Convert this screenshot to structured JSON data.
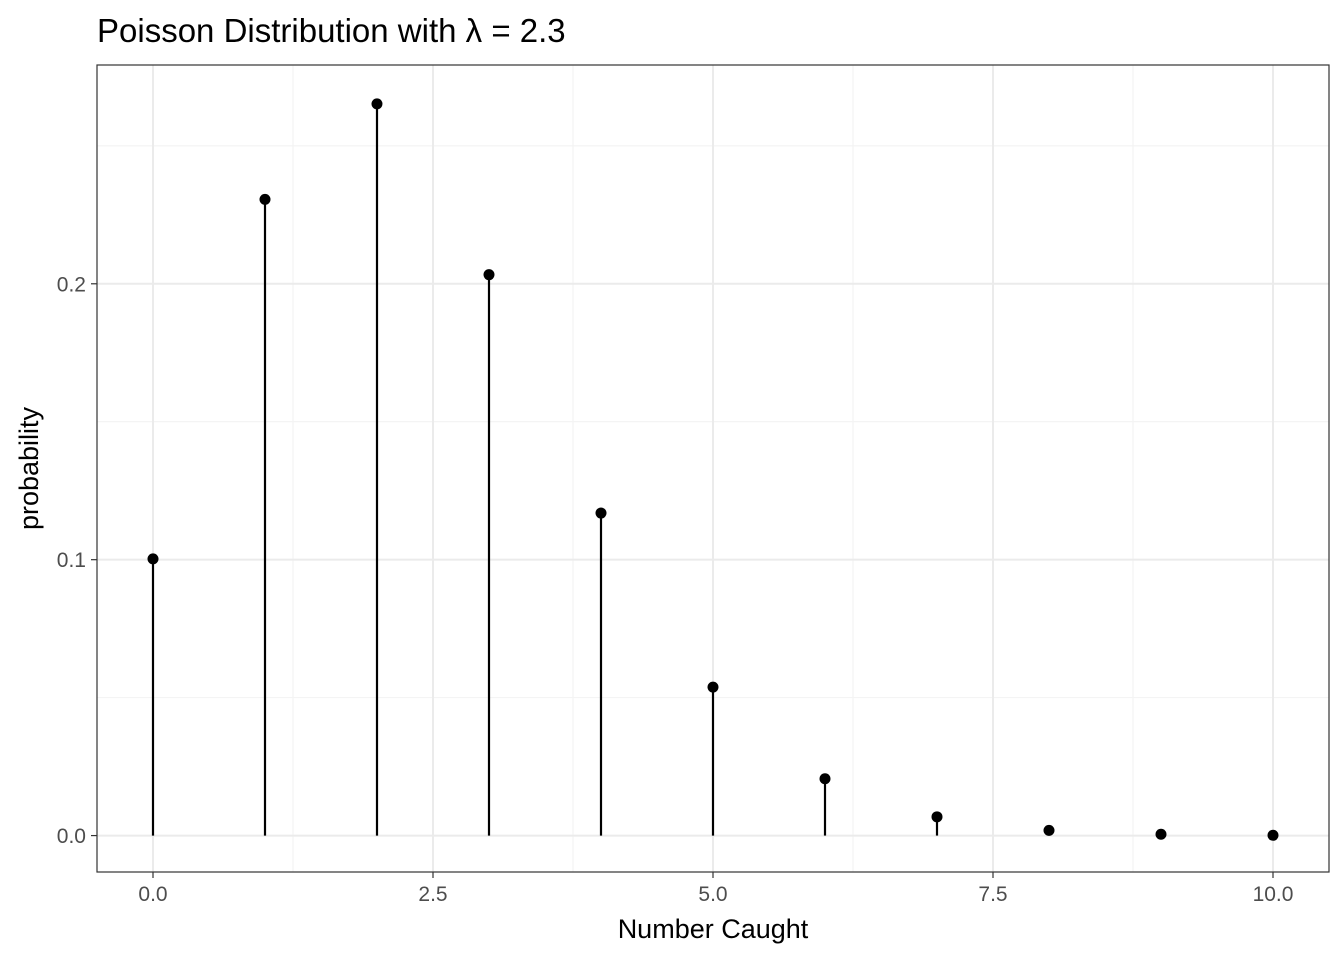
{
  "chart_data": {
    "type": "lollipop",
    "title": "Poisson Distribution with  λ = 2.3",
    "xlabel": "Number Caught",
    "ylabel": "probability",
    "xlim": [
      -0.5,
      10.5
    ],
    "ylim": [
      -0.0132,
      0.2793
    ],
    "x_ticks": [
      0,
      2.5,
      5,
      7.5,
      10
    ],
    "x_tick_labels": [
      "0.0",
      "2.5",
      "5.0",
      "7.5",
      "10.0"
    ],
    "x_minor_ticks": [
      1.25,
      3.75,
      6.25,
      8.75
    ],
    "y_ticks": [
      0,
      0.1,
      0.2
    ],
    "y_tick_labels": [
      "0.0",
      "0.1",
      "0.2"
    ],
    "y_minor_ticks": [
      0.05,
      0.15,
      0.25
    ],
    "grid": true,
    "x": [
      0,
      1,
      2,
      3,
      4,
      5,
      6,
      7,
      8,
      9,
      10
    ],
    "values": [
      0.1003,
      0.2306,
      0.2652,
      0.2033,
      0.1169,
      0.0538,
      0.0206,
      0.0068,
      0.0019,
      0.0005,
      0.0001
    ],
    "colors": {
      "mark": "#000000",
      "grid_major": "#ebebeb",
      "grid_minor": "#f3f3f3",
      "panel_border": "#333333",
      "tick_text": "#4d4d4d"
    }
  }
}
